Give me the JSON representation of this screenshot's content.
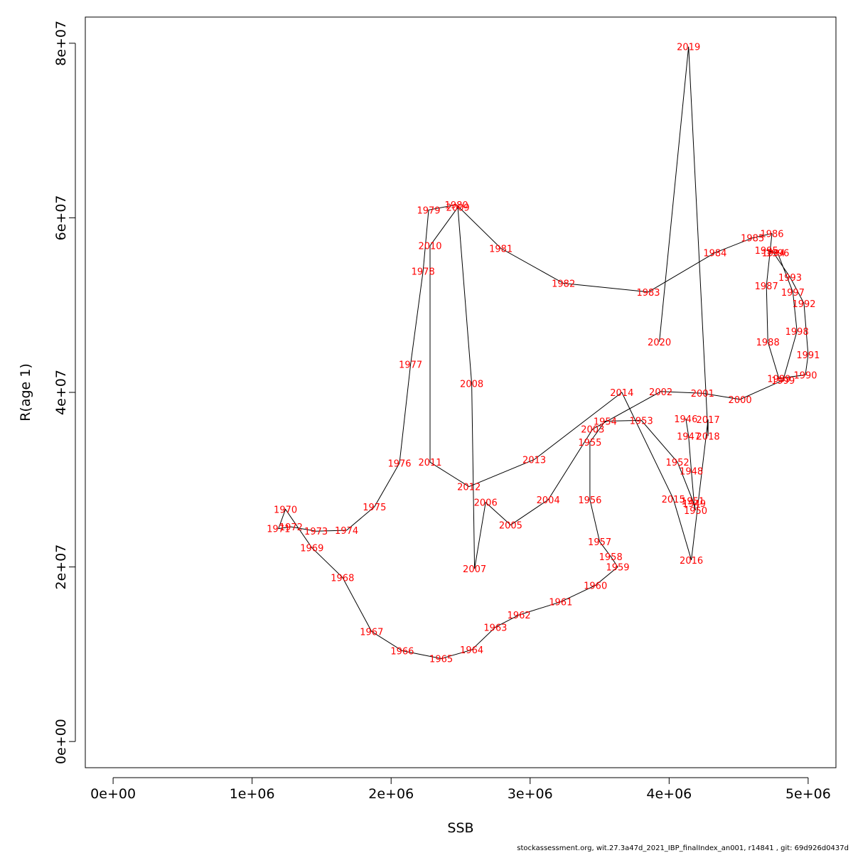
{
  "chart_data": {
    "type": "line",
    "title": "",
    "xlabel": "SSB",
    "ylabel": "R(age 1)",
    "xlim": [
      -200000,
      5200000
    ],
    "ylim": [
      -3000000,
      83000000
    ],
    "x_ticks": [
      {
        "value": 0,
        "label": "0e+00"
      },
      {
        "value": 1000000,
        "label": "1e+06"
      },
      {
        "value": 2000000,
        "label": "2e+06"
      },
      {
        "value": 3000000,
        "label": "3e+06"
      },
      {
        "value": 4000000,
        "label": "4e+06"
      },
      {
        "value": 5000000,
        "label": "5e+06"
      }
    ],
    "y_ticks": [
      {
        "value": 0,
        "label": "0e+00"
      },
      {
        "value": 20000000,
        "label": "2e+07"
      },
      {
        "value": 40000000,
        "label": "4e+07"
      },
      {
        "value": 60000000,
        "label": "6e+07"
      },
      {
        "value": 80000000,
        "label": "8e+07"
      }
    ],
    "line_color": "#000000",
    "label_color": "#ff0000",
    "grid": false,
    "points": [
      {
        "year": "1946",
        "x": 4120000,
        "y": 37000000
      },
      {
        "year": "1947",
        "x": 4140000,
        "y": 35000000
      },
      {
        "year": "1948",
        "x": 4160000,
        "y": 31000000
      },
      {
        "year": "1949",
        "x": 4180000,
        "y": 27300000
      },
      {
        "year": "1950",
        "x": 4190000,
        "y": 26500000
      },
      {
        "year": "1951",
        "x": 4170000,
        "y": 27600000
      },
      {
        "year": "1952",
        "x": 4060000,
        "y": 32000000
      },
      {
        "year": "1953",
        "x": 3800000,
        "y": 36800000
      },
      {
        "year": "1954",
        "x": 3540000,
        "y": 36700000
      },
      {
        "year": "1955",
        "x": 3430000,
        "y": 34300000
      },
      {
        "year": "1956",
        "x": 3430000,
        "y": 27700000
      },
      {
        "year": "1957",
        "x": 3500000,
        "y": 22900000
      },
      {
        "year": "1958",
        "x": 3580000,
        "y": 21200000
      },
      {
        "year": "1959",
        "x": 3630000,
        "y": 20000000
      },
      {
        "year": "1960",
        "x": 3470000,
        "y": 17900000
      },
      {
        "year": "1961",
        "x": 3220000,
        "y": 16000000
      },
      {
        "year": "1962",
        "x": 2920000,
        "y": 14500000
      },
      {
        "year": "1963",
        "x": 2750000,
        "y": 13100000
      },
      {
        "year": "1964",
        "x": 2580000,
        "y": 10500000
      },
      {
        "year": "1965",
        "x": 2360000,
        "y": 9500000
      },
      {
        "year": "1966",
        "x": 2080000,
        "y": 10400000
      },
      {
        "year": "1967",
        "x": 1860000,
        "y": 12600000
      },
      {
        "year": "1968",
        "x": 1650000,
        "y": 18800000
      },
      {
        "year": "1969",
        "x": 1430000,
        "y": 22200000
      },
      {
        "year": "1970",
        "x": 1240000,
        "y": 26600000
      },
      {
        "year": "1971",
        "x": 1190000,
        "y": 24400000
      },
      {
        "year": "1972",
        "x": 1280000,
        "y": 24600000
      },
      {
        "year": "1973",
        "x": 1460000,
        "y": 24100000
      },
      {
        "year": "1974",
        "x": 1680000,
        "y": 24200000
      },
      {
        "year": "1975",
        "x": 1880000,
        "y": 26900000
      },
      {
        "year": "1976",
        "x": 2060000,
        "y": 31900000
      },
      {
        "year": "1977",
        "x": 2140000,
        "y": 43200000
      },
      {
        "year": "1978",
        "x": 2230000,
        "y": 53900000
      },
      {
        "year": "1979",
        "x": 2270000,
        "y": 60900000
      },
      {
        "year": "1980",
        "x": 2470000,
        "y": 61500000
      },
      {
        "year": "1981",
        "x": 2790000,
        "y": 56500000
      },
      {
        "year": "1982",
        "x": 3240000,
        "y": 52500000
      },
      {
        "year": "1983",
        "x": 3850000,
        "y": 51500000
      },
      {
        "year": "1984",
        "x": 4330000,
        "y": 56000000
      },
      {
        "year": "1985",
        "x": 4600000,
        "y": 57700000
      },
      {
        "year": "1986",
        "x": 4740000,
        "y": 58200000
      },
      {
        "year": "1987",
        "x": 4700000,
        "y": 52200000
      },
      {
        "year": "1988",
        "x": 4710000,
        "y": 45800000
      },
      {
        "year": "1989",
        "x": 4790000,
        "y": 41600000
      },
      {
        "year": "1990",
        "x": 4980000,
        "y": 42000000
      },
      {
        "year": "1991",
        "x": 5000000,
        "y": 44300000
      },
      {
        "year": "1992",
        "x": 4970000,
        "y": 50200000
      },
      {
        "year": "1993",
        "x": 4870000,
        "y": 53200000
      },
      {
        "year": "1994",
        "x": 4750000,
        "y": 56000000
      },
      {
        "year": "1995",
        "x": 4700000,
        "y": 56300000
      },
      {
        "year": "1996",
        "x": 4780000,
        "y": 56000000
      },
      {
        "year": "1997",
        "x": 4890000,
        "y": 51500000
      },
      {
        "year": "1998",
        "x": 4920000,
        "y": 47000000
      },
      {
        "year": "1999",
        "x": 4820000,
        "y": 41400000
      },
      {
        "year": "2000",
        "x": 4510000,
        "y": 39200000
      },
      {
        "year": "2001",
        "x": 4240000,
        "y": 39900000
      },
      {
        "year": "2002",
        "x": 3940000,
        "y": 40100000
      },
      {
        "year": "2003",
        "x": 3450000,
        "y": 35800000
      },
      {
        "year": "2004",
        "x": 3130000,
        "y": 27700000
      },
      {
        "year": "2005",
        "x": 2860000,
        "y": 24800000
      },
      {
        "year": "2006",
        "x": 2680000,
        "y": 27400000
      },
      {
        "year": "2007",
        "x": 2600000,
        "y": 19800000
      },
      {
        "year": "2008",
        "x": 2580000,
        "y": 41000000
      },
      {
        "year": "2009",
        "x": 2480000,
        "y": 61200000
      },
      {
        "year": "2010",
        "x": 2280000,
        "y": 56800000
      },
      {
        "year": "2011",
        "x": 2280000,
        "y": 32000000
      },
      {
        "year": "2012",
        "x": 2560000,
        "y": 29200000
      },
      {
        "year": "2013",
        "x": 3030000,
        "y": 32300000
      },
      {
        "year": "2014",
        "x": 3660000,
        "y": 40000000
      },
      {
        "year": "2015",
        "x": 4030000,
        "y": 27800000
      },
      {
        "year": "2016",
        "x": 4160000,
        "y": 20800000
      },
      {
        "year": "2017",
        "x": 4280000,
        "y": 36900000
      },
      {
        "year": "2018",
        "x": 4280000,
        "y": 35000000
      },
      {
        "year": "2019",
        "x": 4140000,
        "y": 79600000
      },
      {
        "year": "2020",
        "x": 3930000,
        "y": 45800000
      }
    ]
  },
  "footer": {
    "text": "stockassessment.org, wit.27.3a47d_2021_IBP_finalIndex_an001, r14841 , git: 69d926d0437d"
  }
}
